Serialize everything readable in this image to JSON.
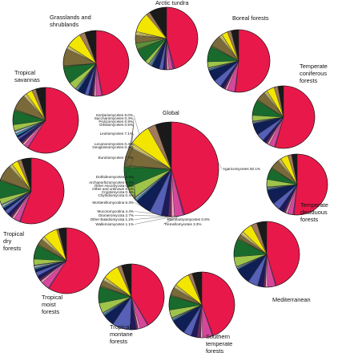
{
  "chart_data": {
    "type": "pie",
    "title": "",
    "global": {
      "label": "Global",
      "slices": [
        {
          "name": "Agaricomycetes",
          "label": "Agaricomycetes 50.1%",
          "value": 50.1,
          "color": "#e8194a"
        },
        {
          "name": "Microbotryomycetes",
          "label": "Microbotryomycetes 0.6%",
          "value": 0.6,
          "color": "#8a2a86"
        },
        {
          "name": "Tremellomycetes",
          "label": "Tremellomycetes 3.3%",
          "value": 3.3,
          "color": "#d6479b"
        },
        {
          "name": "Wallemiomycetes",
          "label": "Wallemiomycetes 1.1%",
          "value": 1.1,
          "color": "#f4a3c4"
        },
        {
          "name": "Other Basidiomycota",
          "label": "Other Basidiomycota 1.2%",
          "value": 1.2,
          "color": "#6b2a5a"
        },
        {
          "name": "Glomeromycota",
          "label": "Glomeromycota 2.7%",
          "value": 2.7,
          "color": "#1e1a5c"
        },
        {
          "name": "Mucoromycotina",
          "label": "Mucoromycotina 4.4%",
          "value": 4.4,
          "color": "#5560b6"
        },
        {
          "name": "Mortierellomycotina",
          "label": "Mortierellomycotina 6.3%",
          "value": 6.3,
          "color": "#0f1e55"
        },
        {
          "name": "Chytridiomycota",
          "label": "Chytridiomycota 0.4%",
          "value": 0.4,
          "color": "#2aa6e0"
        },
        {
          "name": "Cryptomycota",
          "label": "Cryptomycota 0.1%",
          "value": 0.1,
          "color": "#8fd3f0"
        },
        {
          "name": "Other and unknown",
          "label": "Other and unknown 0.2%",
          "value": 0.2,
          "color": "#cfeaf6"
        },
        {
          "name": "Other Ascomycota",
          "label": "Other Ascomycota 0.5%",
          "value": 0.5,
          "color": "#b9c8d6"
        },
        {
          "name": "Archaeorhizomycetes",
          "label": "Archaeorhizomycetes 0.4%",
          "value": 0.4,
          "color": "#6e7d8c"
        },
        {
          "name": "Dothideomycetes",
          "label": "Dothideomycetes 4.5%",
          "value": 4.5,
          "color": "#9ec44a"
        },
        {
          "name": "Eurotiomycetes",
          "label": "Eurotiomycetes 7.7%",
          "value": 7.7,
          "color": "#186b2c"
        },
        {
          "name": "Geoglossomycetes",
          "label": "Geoglossomycetes 0.4%",
          "value": 0.4,
          "color": "#6d8a2c"
        },
        {
          "name": "Lecanoromycetes",
          "label": "Lecanoromycetes 0.4%",
          "value": 0.4,
          "color": "#5b8f3a"
        },
        {
          "name": "Leotiomycetes",
          "label": "Leotiomycetes 7.1%",
          "value": 7.1,
          "color": "#7a6a3a"
        },
        {
          "name": "Orbiliomycetes",
          "label": "Orbiliomycetes 0.5%",
          "value": 0.5,
          "color": "#ece7b0"
        },
        {
          "name": "Pezizomycetes",
          "label": "Pezizomycetes 0.9%",
          "value": 0.9,
          "color": "#e9d35a"
        },
        {
          "name": "Saccharomycetes",
          "label": "Saccharomycetes 0.4%",
          "value": 0.4,
          "color": "#f6ef8a"
        },
        {
          "name": "Sordariomycetes",
          "label": "Sordariomycetes 8.0%",
          "value": 8.0,
          "color": "#f2e600"
        },
        {
          "name": "unlabelled brown",
          "label": "",
          "value": 3.0,
          "color": "#a07a5c"
        },
        {
          "name": "unlabelled black",
          "label": "",
          "value": 6.1,
          "color": "#1a1a1a"
        }
      ]
    },
    "biomes": [
      {
        "name": "Arctic tundra",
        "slices": [
          45,
          1,
          2,
          1,
          1,
          1,
          2,
          4,
          0.5,
          0.2,
          0.2,
          0.5,
          0.5,
          2,
          7,
          0.5,
          3,
          4,
          0.5,
          1,
          0.5,
          10,
          2,
          9
        ]
      },
      {
        "name": "Boreal forests",
        "slices": [
          52,
          0.5,
          4,
          1,
          1,
          2,
          4,
          6,
          0.5,
          0.1,
          0.2,
          0.5,
          0.4,
          3,
          8,
          0.4,
          0.4,
          6,
          0.5,
          0.9,
          0.4,
          3,
          2,
          4
        ]
      },
      {
        "name": "Temperate coniferous forests",
        "slices": [
          55,
          0.5,
          3,
          1,
          1,
          2,
          4,
          6,
          0.3,
          0.1,
          0.2,
          0.5,
          0.4,
          3,
          8,
          0.4,
          0.3,
          5,
          0.5,
          0.8,
          0.4,
          4,
          2,
          3
        ]
      },
      {
        "name": "Temperate deciduous forests",
        "slices": [
          52,
          0.6,
          3,
          1,
          1,
          3,
          4,
          8,
          0.5,
          0.1,
          0.2,
          0.5,
          0.4,
          4,
          6,
          0.4,
          0.3,
          5,
          0.5,
          0.8,
          0.4,
          4,
          2,
          3
        ]
      },
      {
        "name": "Mediterranean",
        "slices": [
          46,
          0.5,
          4,
          1,
          1,
          3,
          5,
          8,
          0.4,
          0.1,
          0.2,
          0.5,
          0.4,
          5,
          9,
          0.4,
          0.4,
          2,
          0.5,
          1,
          0.4,
          5,
          3,
          5
        ]
      },
      {
        "name": "Southern temperate forests",
        "slices": [
          46,
          0.5,
          5,
          1,
          2,
          3,
          4,
          8,
          0.5,
          0.1,
          0.2,
          0.5,
          0.4,
          4,
          7,
          0.4,
          0.4,
          4,
          0.5,
          0.9,
          0.4,
          8,
          2,
          5
        ]
      },
      {
        "name": "Tropical montane forests",
        "slices": [
          42,
          0.5,
          4,
          1,
          1,
          3,
          9,
          6,
          0.5,
          0.1,
          0.2,
          0.5,
          0.4,
          5,
          8,
          0.4,
          0.4,
          3,
          0.5,
          0.9,
          0.4,
          8,
          2,
          5
        ]
      },
      {
        "name": "Tropical moist forests",
        "slices": [
          60,
          0.5,
          4,
          1,
          1,
          2,
          2,
          1.5,
          0.5,
          0.1,
          0.3,
          0.8,
          0.5,
          3,
          7,
          0.4,
          0.4,
          3,
          0.5,
          0.9,
          0.4,
          7,
          1,
          4
        ]
      },
      {
        "name": "Tropical dry forests",
        "slices": [
          57,
          0.5,
          3,
          1,
          1,
          2,
          2,
          1.5,
          0.5,
          0.1,
          0.3,
          0.8,
          0.5,
          3,
          9,
          0.4,
          0.4,
          8,
          0.5,
          0.9,
          0.4,
          3,
          2,
          5
        ]
      },
      {
        "name": "Tropical savannas",
        "slices": [
          60,
          0.3,
          2,
          1,
          1,
          2,
          1,
          1,
          0.8,
          0.1,
          0.3,
          1,
          0.5,
          3,
          7,
          0.4,
          0.4,
          8,
          0.5,
          0.9,
          0.4,
          3,
          2,
          5
        ]
      },
      {
        "name": "Grasslands and shrublands",
        "slices": [
          50,
          0.5,
          3,
          1,
          1,
          2,
          2,
          4,
          0.5,
          0.1,
          0.2,
          0.5,
          0.4,
          4,
          9,
          0.4,
          0.4,
          9,
          0.5,
          1,
          0.4,
          8,
          3,
          6
        ]
      }
    ]
  }
}
